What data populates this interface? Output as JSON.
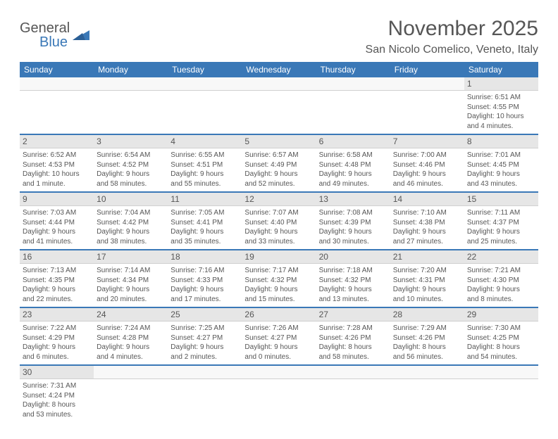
{
  "logo": {
    "text1": "General",
    "text2": "Blue"
  },
  "title": "November 2025",
  "location": "San Nicolo Comelico, Veneto, Italy",
  "colors": {
    "header_bg": "#3a78b7",
    "header_text": "#ffffff",
    "num_row_bg": "#e6e6e6",
    "text_color": "#565656",
    "border_blue": "#3a78b7",
    "page_bg": "#ffffff"
  },
  "day_headers": [
    "Sunday",
    "Monday",
    "Tuesday",
    "Wednesday",
    "Thursday",
    "Friday",
    "Saturday"
  ],
  "weeks": [
    {
      "nums": [
        "",
        "",
        "",
        "",
        "",
        "",
        "1"
      ],
      "cells": [
        null,
        null,
        null,
        null,
        null,
        null,
        {
          "sunrise": "Sunrise: 6:51 AM",
          "sunset": "Sunset: 4:55 PM",
          "daylight1": "Daylight: 10 hours",
          "daylight2": "and 4 minutes."
        }
      ]
    },
    {
      "nums": [
        "2",
        "3",
        "4",
        "5",
        "6",
        "7",
        "8"
      ],
      "cells": [
        {
          "sunrise": "Sunrise: 6:52 AM",
          "sunset": "Sunset: 4:53 PM",
          "daylight1": "Daylight: 10 hours",
          "daylight2": "and 1 minute."
        },
        {
          "sunrise": "Sunrise: 6:54 AM",
          "sunset": "Sunset: 4:52 PM",
          "daylight1": "Daylight: 9 hours",
          "daylight2": "and 58 minutes."
        },
        {
          "sunrise": "Sunrise: 6:55 AM",
          "sunset": "Sunset: 4:51 PM",
          "daylight1": "Daylight: 9 hours",
          "daylight2": "and 55 minutes."
        },
        {
          "sunrise": "Sunrise: 6:57 AM",
          "sunset": "Sunset: 4:49 PM",
          "daylight1": "Daylight: 9 hours",
          "daylight2": "and 52 minutes."
        },
        {
          "sunrise": "Sunrise: 6:58 AM",
          "sunset": "Sunset: 4:48 PM",
          "daylight1": "Daylight: 9 hours",
          "daylight2": "and 49 minutes."
        },
        {
          "sunrise": "Sunrise: 7:00 AM",
          "sunset": "Sunset: 4:46 PM",
          "daylight1": "Daylight: 9 hours",
          "daylight2": "and 46 minutes."
        },
        {
          "sunrise": "Sunrise: 7:01 AM",
          "sunset": "Sunset: 4:45 PM",
          "daylight1": "Daylight: 9 hours",
          "daylight2": "and 43 minutes."
        }
      ]
    },
    {
      "nums": [
        "9",
        "10",
        "11",
        "12",
        "13",
        "14",
        "15"
      ],
      "cells": [
        {
          "sunrise": "Sunrise: 7:03 AM",
          "sunset": "Sunset: 4:44 PM",
          "daylight1": "Daylight: 9 hours",
          "daylight2": "and 41 minutes."
        },
        {
          "sunrise": "Sunrise: 7:04 AM",
          "sunset": "Sunset: 4:42 PM",
          "daylight1": "Daylight: 9 hours",
          "daylight2": "and 38 minutes."
        },
        {
          "sunrise": "Sunrise: 7:05 AM",
          "sunset": "Sunset: 4:41 PM",
          "daylight1": "Daylight: 9 hours",
          "daylight2": "and 35 minutes."
        },
        {
          "sunrise": "Sunrise: 7:07 AM",
          "sunset": "Sunset: 4:40 PM",
          "daylight1": "Daylight: 9 hours",
          "daylight2": "and 33 minutes."
        },
        {
          "sunrise": "Sunrise: 7:08 AM",
          "sunset": "Sunset: 4:39 PM",
          "daylight1": "Daylight: 9 hours",
          "daylight2": "and 30 minutes."
        },
        {
          "sunrise": "Sunrise: 7:10 AM",
          "sunset": "Sunset: 4:38 PM",
          "daylight1": "Daylight: 9 hours",
          "daylight2": "and 27 minutes."
        },
        {
          "sunrise": "Sunrise: 7:11 AM",
          "sunset": "Sunset: 4:37 PM",
          "daylight1": "Daylight: 9 hours",
          "daylight2": "and 25 minutes."
        }
      ]
    },
    {
      "nums": [
        "16",
        "17",
        "18",
        "19",
        "20",
        "21",
        "22"
      ],
      "cells": [
        {
          "sunrise": "Sunrise: 7:13 AM",
          "sunset": "Sunset: 4:35 PM",
          "daylight1": "Daylight: 9 hours",
          "daylight2": "and 22 minutes."
        },
        {
          "sunrise": "Sunrise: 7:14 AM",
          "sunset": "Sunset: 4:34 PM",
          "daylight1": "Daylight: 9 hours",
          "daylight2": "and 20 minutes."
        },
        {
          "sunrise": "Sunrise: 7:16 AM",
          "sunset": "Sunset: 4:33 PM",
          "daylight1": "Daylight: 9 hours",
          "daylight2": "and 17 minutes."
        },
        {
          "sunrise": "Sunrise: 7:17 AM",
          "sunset": "Sunset: 4:32 PM",
          "daylight1": "Daylight: 9 hours",
          "daylight2": "and 15 minutes."
        },
        {
          "sunrise": "Sunrise: 7:18 AM",
          "sunset": "Sunset: 4:32 PM",
          "daylight1": "Daylight: 9 hours",
          "daylight2": "and 13 minutes."
        },
        {
          "sunrise": "Sunrise: 7:20 AM",
          "sunset": "Sunset: 4:31 PM",
          "daylight1": "Daylight: 9 hours",
          "daylight2": "and 10 minutes."
        },
        {
          "sunrise": "Sunrise: 7:21 AM",
          "sunset": "Sunset: 4:30 PM",
          "daylight1": "Daylight: 9 hours",
          "daylight2": "and 8 minutes."
        }
      ]
    },
    {
      "nums": [
        "23",
        "24",
        "25",
        "26",
        "27",
        "28",
        "29"
      ],
      "cells": [
        {
          "sunrise": "Sunrise: 7:22 AM",
          "sunset": "Sunset: 4:29 PM",
          "daylight1": "Daylight: 9 hours",
          "daylight2": "and 6 minutes."
        },
        {
          "sunrise": "Sunrise: 7:24 AM",
          "sunset": "Sunset: 4:28 PM",
          "daylight1": "Daylight: 9 hours",
          "daylight2": "and 4 minutes."
        },
        {
          "sunrise": "Sunrise: 7:25 AM",
          "sunset": "Sunset: 4:27 PM",
          "daylight1": "Daylight: 9 hours",
          "daylight2": "and 2 minutes."
        },
        {
          "sunrise": "Sunrise: 7:26 AM",
          "sunset": "Sunset: 4:27 PM",
          "daylight1": "Daylight: 9 hours",
          "daylight2": "and 0 minutes."
        },
        {
          "sunrise": "Sunrise: 7:28 AM",
          "sunset": "Sunset: 4:26 PM",
          "daylight1": "Daylight: 8 hours",
          "daylight2": "and 58 minutes."
        },
        {
          "sunrise": "Sunrise: 7:29 AM",
          "sunset": "Sunset: 4:26 PM",
          "daylight1": "Daylight: 8 hours",
          "daylight2": "and 56 minutes."
        },
        {
          "sunrise": "Sunrise: 7:30 AM",
          "sunset": "Sunset: 4:25 PM",
          "daylight1": "Daylight: 8 hours",
          "daylight2": "and 54 minutes."
        }
      ]
    },
    {
      "nums": [
        "30",
        "",
        "",
        "",
        "",
        "",
        ""
      ],
      "cells": [
        {
          "sunrise": "Sunrise: 7:31 AM",
          "sunset": "Sunset: 4:24 PM",
          "daylight1": "Daylight: 8 hours",
          "daylight2": "and 53 minutes."
        },
        null,
        null,
        null,
        null,
        null,
        null
      ]
    }
  ]
}
